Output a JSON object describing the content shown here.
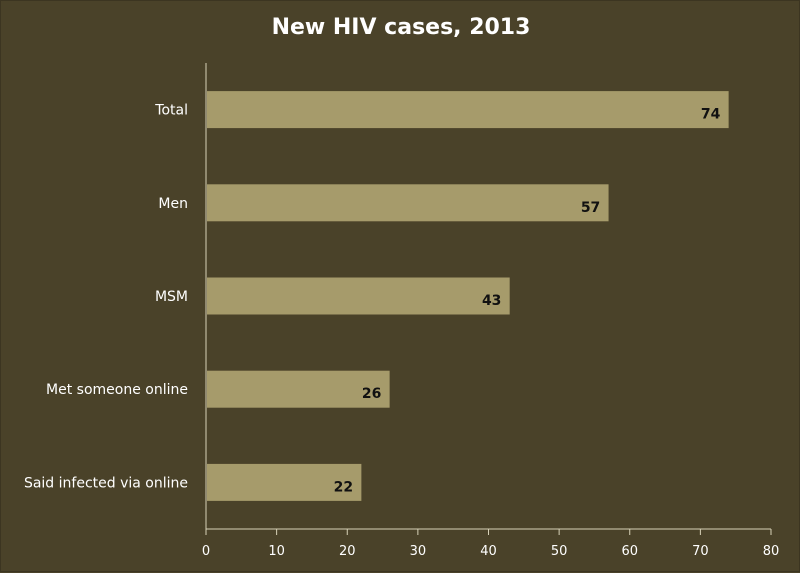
{
  "chart_data": {
    "type": "bar",
    "orientation": "horizontal",
    "title": "New HIV cases, 2013",
    "xlabel": "",
    "ylabel": "",
    "categories": [
      "Total",
      "Men",
      "MSM",
      "Met someone online",
      "Said infected via online"
    ],
    "values": [
      74,
      57,
      43,
      26,
      22
    ],
    "data_labels": [
      "74",
      "57",
      "43",
      "26",
      "22"
    ],
    "xlim": [
      0,
      80
    ],
    "x_ticks": [
      0,
      10,
      20,
      30,
      40,
      50,
      60,
      70,
      80
    ],
    "x_tick_labels": [
      "0",
      "10",
      "20",
      "30",
      "40",
      "50",
      "60",
      "70",
      "80"
    ],
    "grid": false,
    "legend": "none",
    "colors": {
      "background": "#4a4229",
      "bar": "#a69b6b",
      "axis": "#d8d2b8",
      "text": "#ffffff",
      "data_label": "#111111"
    }
  }
}
